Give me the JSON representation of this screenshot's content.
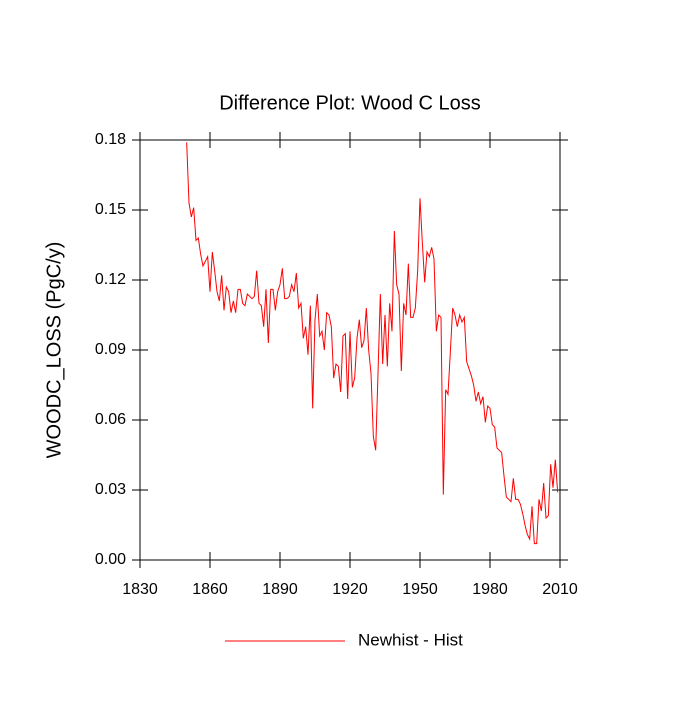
{
  "chart_data": {
    "type": "line",
    "title": "Difference Plot: Wood C Loss",
    "y_label": "WOODC_LOSS  (PgC/y)",
    "xlim": [
      1830,
      2010
    ],
    "xticks": [
      1830,
      1860,
      1890,
      1920,
      1950,
      1980,
      2010
    ],
    "ylim": [
      0,
      0.18
    ],
    "yticks": [
      {
        "value": 0,
        "label": "0.00"
      },
      {
        "value": 0.03,
        "label": "0.03"
      },
      {
        "value": 0.06,
        "label": "0.06"
      },
      {
        "value": 0.09,
        "label": "0.09"
      },
      {
        "value": 0.12,
        "label": "0.12"
      },
      {
        "value": 0.15,
        "label": "0.15"
      },
      {
        "value": 0.18,
        "label": "0.18"
      }
    ],
    "legend": "bottom",
    "x": [
      1850,
      1851,
      1852,
      1853,
      1854,
      1855,
      1856,
      1857,
      1858,
      1859,
      1860,
      1861,
      1862,
      1863,
      1864,
      1865,
      1866,
      1867,
      1868,
      1869,
      1870,
      1871,
      1872,
      1873,
      1874,
      1875,
      1876,
      1877,
      1878,
      1879,
      1880,
      1881,
      1882,
      1883,
      1884,
      1885,
      1886,
      1887,
      1888,
      1889,
      1890,
      1891,
      1892,
      1893,
      1894,
      1895,
      1896,
      1897,
      1898,
      1899,
      1900,
      1901,
      1902,
      1903,
      1904,
      1905,
      1906,
      1907,
      1908,
      1909,
      1910,
      1911,
      1912,
      1913,
      1914,
      1915,
      1916,
      1917,
      1918,
      1919,
      1920,
      1921,
      1922,
      1923,
      1924,
      1925,
      1926,
      1927,
      1928,
      1929,
      1930,
      1931,
      1932,
      1933,
      1934,
      1935,
      1936,
      1937,
      1938,
      1939,
      1940,
      1941,
      1942,
      1943,
      1944,
      1945,
      1946,
      1947,
      1948,
      1949,
      1950,
      1951,
      1952,
      1953,
      1954,
      1955,
      1956,
      1957,
      1958,
      1959,
      1960,
      1961,
      1962,
      1963,
      1964,
      1965,
      1966,
      1967,
      1968,
      1969,
      1970,
      1971,
      1972,
      1973,
      1974,
      1975,
      1976,
      1977,
      1978,
      1979,
      1980,
      1981,
      1982,
      1983,
      1984,
      1985,
      1986,
      1987,
      1988,
      1989,
      1990,
      1991,
      1992,
      1993,
      1994,
      1995,
      1996,
      1997,
      1998,
      1999,
      2000,
      2001,
      2002,
      2003,
      2004,
      2005,
      2006,
      2007,
      2008,
      2009
    ],
    "series": [
      {
        "name": "Newhist - Hist",
        "color": "#ff0000",
        "values": [
          0.179,
          0.153,
          0.147,
          0.151,
          0.137,
          0.138,
          0.131,
          0.126,
          0.128,
          0.13,
          0.115,
          0.132,
          0.124,
          0.115,
          0.111,
          0.122,
          0.107,
          0.117,
          0.115,
          0.106,
          0.111,
          0.106,
          0.116,
          0.116,
          0.11,
          0.109,
          0.114,
          0.113,
          0.112,
          0.113,
          0.124,
          0.11,
          0.109,
          0.1,
          0.116,
          0.093,
          0.116,
          0.116,
          0.107,
          0.115,
          0.118,
          0.125,
          0.112,
          0.112,
          0.113,
          0.118,
          0.115,
          0.123,
          0.108,
          0.11,
          0.095,
          0.1,
          0.088,
          0.109,
          0.065,
          0.103,
          0.114,
          0.096,
          0.098,
          0.09,
          0.106,
          0.105,
          0.1,
          0.078,
          0.084,
          0.083,
          0.072,
          0.096,
          0.097,
          0.069,
          0.098,
          0.074,
          0.078,
          0.095,
          0.103,
          0.091,
          0.094,
          0.108,
          0.09,
          0.08,
          0.053,
          0.047,
          0.08,
          0.114,
          0.084,
          0.105,
          0.083,
          0.11,
          0.098,
          0.141,
          0.118,
          0.114,
          0.081,
          0.11,
          0.105,
          0.127,
          0.104,
          0.104,
          0.108,
          0.124,
          0.155,
          0.136,
          0.119,
          0.132,
          0.13,
          0.134,
          0.129,
          0.098,
          0.105,
          0.104,
          0.028,
          0.073,
          0.071,
          0.089,
          0.108,
          0.105,
          0.1,
          0.105,
          0.102,
          0.104,
          0.085,
          0.082,
          0.079,
          0.075,
          0.068,
          0.072,
          0.067,
          0.07,
          0.059,
          0.066,
          0.065,
          0.058,
          0.057,
          0.048,
          0.047,
          0.046,
          0.036,
          0.027,
          0.026,
          0.025,
          0.035,
          0.026,
          0.026,
          0.024,
          0.02,
          0.015,
          0.011,
          0.009,
          0.023,
          0.007,
          0.007,
          0.026,
          0.021,
          0.033,
          0.018,
          0.019,
          0.041,
          0.031,
          0.043,
          0.029
        ]
      }
    ]
  }
}
